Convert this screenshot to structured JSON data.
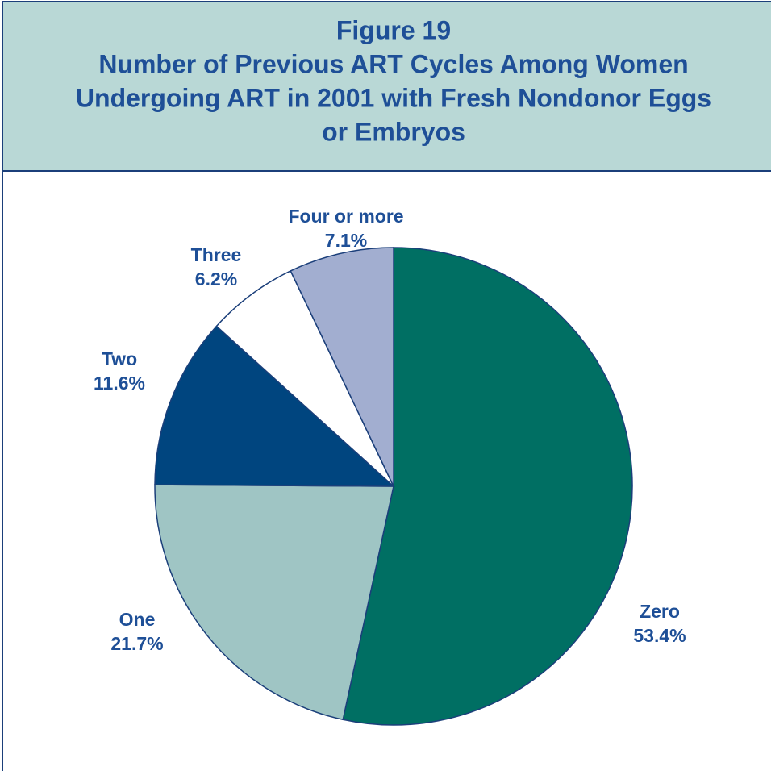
{
  "chart_data": {
    "type": "pie",
    "title": "Figure 19",
    "subtitle": [
      "Number of Previous ART Cycles Among Women",
      "Undergoing ART in 2001 with Fresh Nondonor Eggs",
      "or Embryos"
    ],
    "categories": [
      "Zero",
      "One",
      "Two",
      "Three",
      "Four or more"
    ],
    "values": [
      53.4,
      21.7,
      11.6,
      6.2,
      7.1
    ],
    "value_labels": [
      "53.4%",
      "21.7%",
      "11.6%",
      "6.2%",
      "7.1%"
    ],
    "colors": [
      "#006f63",
      "#9fc5c4",
      "#00457f",
      "#ffffff",
      "#a2aed0"
    ]
  }
}
